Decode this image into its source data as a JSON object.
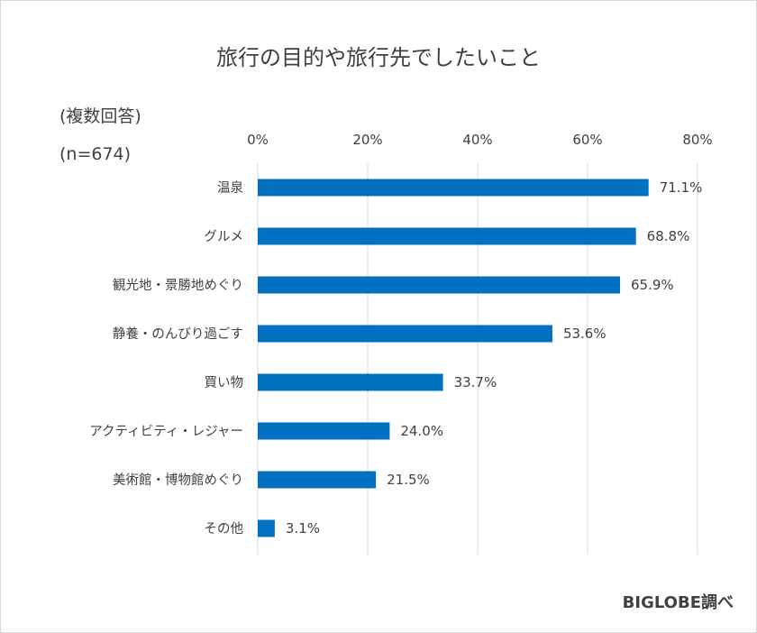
{
  "chart_data": {
    "type": "bar",
    "orientation": "horizontal",
    "title": "旅行の目的や旅行先でしたいこと",
    "notes": [
      "(複数回答)",
      "(n=674)"
    ],
    "source": "BIGLOBE調べ",
    "categories": [
      "温泉",
      "グルメ",
      "観光地・景勝地めぐり",
      "静養・のんびり過ごす",
      "買い物",
      "アクティビティ・レジャー",
      "美術館・博物館めぐり",
      "その他"
    ],
    "values": [
      71.1,
      68.8,
      65.9,
      53.6,
      33.7,
      24.0,
      21.5,
      3.1
    ],
    "value_labels": [
      "71.1%",
      "68.8%",
      "65.9%",
      "53.6%",
      "33.7%",
      "24.0%",
      "21.5%",
      "3.1%"
    ],
    "xlim": [
      0,
      80
    ],
    "xticks": [
      0,
      20,
      40,
      60,
      80
    ],
    "xtick_labels": [
      "0%",
      "20%",
      "40%",
      "60%",
      "80%"
    ],
    "axis_position": "top",
    "grid": true,
    "legend": "none",
    "bar_color": "#0070c0",
    "grid_color": "#d9d9d9"
  }
}
